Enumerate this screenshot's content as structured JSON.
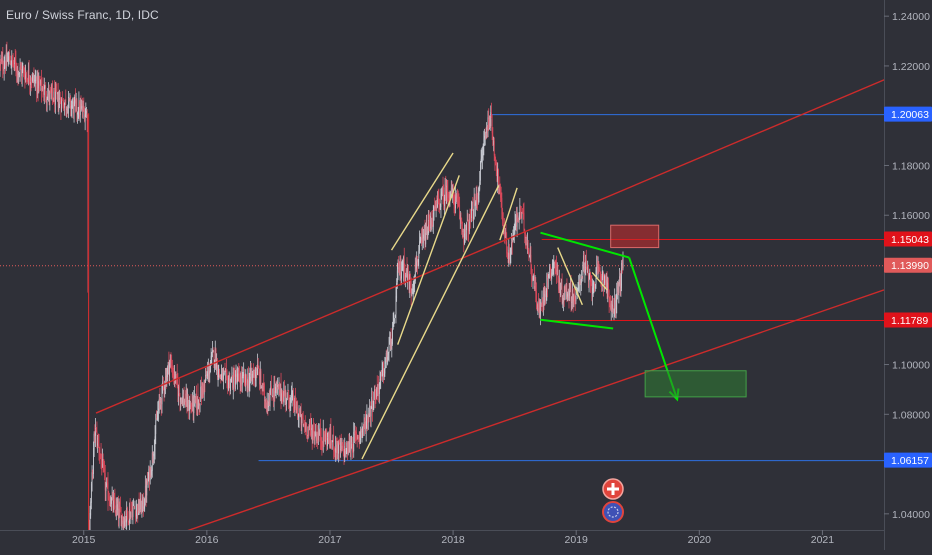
{
  "chart_data": {
    "type": "candlestick",
    "title": "Euro / Swiss Franc, 1D, IDC",
    "xlabel": "",
    "ylabel": "",
    "x_ticks": [
      "2015",
      "2016",
      "2017",
      "2018",
      "2019",
      "2020",
      "2021"
    ],
    "x_tick_values": [
      2015,
      2016,
      2017,
      2018,
      2019,
      2020,
      2021
    ],
    "xlim": [
      2014.32,
      2021.5
    ],
    "y_ticks": [
      "1.24000",
      "1.22000",
      "1.18000",
      "1.16000",
      "1.10000",
      "1.08000",
      "1.04000"
    ],
    "y_tick_values": [
      1.24,
      1.22,
      1.18,
      1.16,
      1.1,
      1.08,
      1.04
    ],
    "ylim": [
      1.0335,
      1.2465
    ],
    "grid": false,
    "price_labels": [
      {
        "value": 1.20063,
        "label": "1.20063",
        "kind": "level-blue"
      },
      {
        "value": 1.15043,
        "label": "1.15043",
        "kind": "level-red"
      },
      {
        "value": 1.1399,
        "label": "1.13990",
        "kind": "last-price"
      },
      {
        "value": 1.11789,
        "label": "1.11789",
        "kind": "level-red"
      },
      {
        "value": 1.06157,
        "label": "1.06157",
        "kind": "level-blue"
      }
    ],
    "price_path": [
      [
        2014.32,
        1.2205
      ],
      [
        2014.4,
        1.2225
      ],
      [
        2014.48,
        1.218
      ],
      [
        2014.56,
        1.216
      ],
      [
        2014.64,
        1.212
      ],
      [
        2014.72,
        1.208
      ],
      [
        2014.8,
        1.206
      ],
      [
        2014.88,
        1.2045
      ],
      [
        2014.96,
        1.2025
      ],
      [
        2015.03,
        1.201
      ],
      [
        2015.04,
        1.03
      ],
      [
        2015.09,
        1.074
      ],
      [
        2015.13,
        1.065
      ],
      [
        2015.18,
        1.05
      ],
      [
        2015.25,
        1.042
      ],
      [
        2015.32,
        1.038
      ],
      [
        2015.4,
        1.042
      ],
      [
        2015.48,
        1.043
      ],
      [
        2015.55,
        1.06
      ],
      [
        2015.6,
        1.08
      ],
      [
        2015.65,
        1.092
      ],
      [
        2015.7,
        1.101
      ],
      [
        2015.78,
        1.088
      ],
      [
        2015.86,
        1.083
      ],
      [
        2015.93,
        1.085
      ],
      [
        2016.0,
        1.095
      ],
      [
        2016.06,
        1.105
      ],
      [
        2016.1,
        1.096
      ],
      [
        2016.17,
        1.093
      ],
      [
        2016.25,
        1.094
      ],
      [
        2016.33,
        1.093
      ],
      [
        2016.41,
        1.098
      ],
      [
        2016.48,
        1.085
      ],
      [
        2016.55,
        1.09
      ],
      [
        2016.63,
        1.088
      ],
      [
        2016.7,
        1.085
      ],
      [
        2016.78,
        1.076
      ],
      [
        2016.86,
        1.073
      ],
      [
        2016.93,
        1.071
      ],
      [
        2017.0,
        1.07
      ],
      [
        2017.07,
        1.066
      ],
      [
        2017.13,
        1.065
      ],
      [
        2017.2,
        1.07
      ],
      [
        2017.28,
        1.075
      ],
      [
        2017.35,
        1.086
      ],
      [
        2017.4,
        1.092
      ],
      [
        2017.45,
        1.1
      ],
      [
        2017.52,
        1.115
      ],
      [
        2017.55,
        1.137
      ],
      [
        2017.6,
        1.14
      ],
      [
        2017.66,
        1.13
      ],
      [
        2017.72,
        1.145
      ],
      [
        2017.8,
        1.155
      ],
      [
        2017.88,
        1.165
      ],
      [
        2017.96,
        1.17
      ],
      [
        2018.03,
        1.165
      ],
      [
        2018.09,
        1.152
      ],
      [
        2018.14,
        1.158
      ],
      [
        2018.2,
        1.168
      ],
      [
        2018.25,
        1.19
      ],
      [
        2018.3,
        1.2006
      ],
      [
        2018.35,
        1.18
      ],
      [
        2018.4,
        1.16
      ],
      [
        2018.45,
        1.142
      ],
      [
        2018.5,
        1.155
      ],
      [
        2018.55,
        1.162
      ],
      [
        2018.6,
        1.15
      ],
      [
        2018.65,
        1.135
      ],
      [
        2018.7,
        1.12
      ],
      [
        2018.76,
        1.133
      ],
      [
        2018.82,
        1.142
      ],
      [
        2018.88,
        1.128
      ],
      [
        2018.94,
        1.13
      ],
      [
        2019.0,
        1.126
      ],
      [
        2019.06,
        1.141
      ],
      [
        2019.12,
        1.131
      ],
      [
        2019.18,
        1.137
      ],
      [
        2019.24,
        1.134
      ],
      [
        2019.29,
        1.12
      ],
      [
        2019.34,
        1.13
      ],
      [
        2019.38,
        1.1399
      ]
    ],
    "annotations": [
      {
        "type": "trendline",
        "color": "#cc2b2b",
        "from": [
          2015.1,
          1.0805
        ],
        "to": [
          2021.72,
          1.219
        ]
      },
      {
        "type": "trendline",
        "color": "#cc2b2b",
        "from": [
          2015.8,
          1.0325
        ],
        "to": [
          2021.5,
          1.13
        ]
      },
      {
        "type": "trendline",
        "color": "#e8d98a",
        "from": [
          2017.26,
          1.062
        ],
        "to": [
          2018.37,
          1.172
        ]
      },
      {
        "type": "trendline",
        "color": "#e8d98a",
        "from": [
          2017.55,
          1.108
        ],
        "to": [
          2018.05,
          1.176
        ]
      },
      {
        "type": "trendline",
        "color": "#e8d98a",
        "from": [
          2017.5,
          1.146
        ],
        "to": [
          2018.0,
          1.185
        ]
      },
      {
        "type": "trendline",
        "color": "#e8d98a",
        "from": [
          2018.38,
          1.15
        ],
        "to": [
          2018.52,
          1.171
        ]
      },
      {
        "type": "trendline",
        "color": "#e8d98a",
        "from": [
          2018.85,
          1.147
        ],
        "to": [
          2019.05,
          1.124
        ]
      },
      {
        "type": "trendline",
        "color": "#e8d98a",
        "from": [
          2019.13,
          1.137
        ],
        "to": [
          2019.25,
          1.13
        ]
      },
      {
        "type": "trendline",
        "color": "#00e600",
        "from": [
          2018.71,
          1.153
        ],
        "to": [
          2019.43,
          1.143
        ]
      },
      {
        "type": "trendline",
        "color": "#00e600",
        "from": [
          2018.71,
          1.118
        ],
        "to": [
          2019.3,
          1.1145
        ]
      },
      {
        "type": "vertical-line",
        "color": "#cc2b2b",
        "x": 2015.04,
        "y_from": 1.0335,
        "y_to": 1.201
      },
      {
        "type": "arrow",
        "color": "#00e600",
        "from": [
          2019.43,
          1.143
        ],
        "to": [
          2019.82,
          1.086
        ]
      },
      {
        "type": "box",
        "color": "#cc2b2b",
        "x": [
          2019.28,
          2019.67
        ],
        "y": [
          1.147,
          1.156
        ]
      },
      {
        "type": "box",
        "color": "#2e7d32",
        "x": [
          2019.56,
          2020.38
        ],
        "y": [
          1.087,
          1.0975
        ]
      }
    ]
  }
}
